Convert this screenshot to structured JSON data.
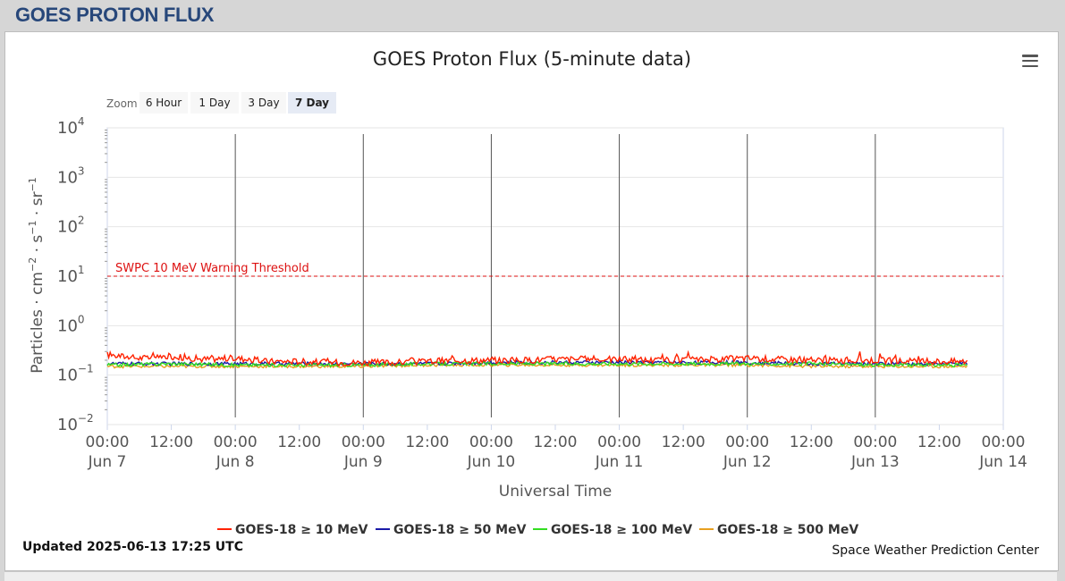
{
  "page": {
    "title": "GOES PROTON FLUX"
  },
  "menu": {
    "icon": "hamburger-menu-icon"
  },
  "zoom": {
    "label": "Zoom",
    "buttons": [
      "6 Hour",
      "1 Day",
      "3 Day",
      "7 Day"
    ],
    "selected": "7 Day"
  },
  "footer": {
    "updated": "Updated 2025-06-13 17:25 UTC",
    "credit": "Space Weather Prediction Center"
  },
  "chart_data": {
    "type": "line",
    "title": "GOES Proton Flux (5-minute data)",
    "xlabel": "Universal Time",
    "ylabel_parts": [
      "Particles · cm",
      "−2",
      " · s",
      "−1",
      " · sr",
      "−1"
    ],
    "y_scale": "log",
    "ylim": [
      0.01,
      10000
    ],
    "y_ticks": [
      {
        "value": 0.01,
        "base": "10",
        "exp": "−2"
      },
      {
        "value": 0.1,
        "base": "10",
        "exp": "−1"
      },
      {
        "value": 1,
        "base": "10",
        "exp": "0"
      },
      {
        "value": 10,
        "base": "10",
        "exp": "1"
      },
      {
        "value": 100,
        "base": "10",
        "exp": "2"
      },
      {
        "value": 1000,
        "base": "10",
        "exp": "3"
      },
      {
        "value": 10000,
        "base": "10",
        "exp": "4"
      }
    ],
    "xlim": [
      "2025-06-07 00:00",
      "2025-06-14 00:00"
    ],
    "x_ticks": [
      {
        "time": "2025-06-07 00:00",
        "line1": "00:00",
        "line2": "Jun 7"
      },
      {
        "time": "2025-06-07 12:00",
        "line1": "12:00",
        "line2": ""
      },
      {
        "time": "2025-06-08 00:00",
        "line1": "00:00",
        "line2": "Jun 8"
      },
      {
        "time": "2025-06-08 12:00",
        "line1": "12:00",
        "line2": ""
      },
      {
        "time": "2025-06-09 00:00",
        "line1": "00:00",
        "line2": "Jun 9"
      },
      {
        "time": "2025-06-09 12:00",
        "line1": "12:00",
        "line2": ""
      },
      {
        "time": "2025-06-10 00:00",
        "line1": "00:00",
        "line2": "Jun 10"
      },
      {
        "time": "2025-06-10 12:00",
        "line1": "12:00",
        "line2": ""
      },
      {
        "time": "2025-06-11 00:00",
        "line1": "00:00",
        "line2": "Jun 11"
      },
      {
        "time": "2025-06-11 12:00",
        "line1": "12:00",
        "line2": ""
      },
      {
        "time": "2025-06-12 00:00",
        "line1": "00:00",
        "line2": "Jun 12"
      },
      {
        "time": "2025-06-12 12:00",
        "line1": "12:00",
        "line2": ""
      },
      {
        "time": "2025-06-13 00:00",
        "line1": "00:00",
        "line2": "Jun 13"
      },
      {
        "time": "2025-06-13 12:00",
        "line1": "12:00",
        "line2": ""
      },
      {
        "time": "2025-06-14 00:00",
        "line1": "00:00",
        "line2": "Jun 14"
      }
    ],
    "day_lines": [
      "2025-06-08 00:00",
      "2025-06-09 00:00",
      "2025-06-10 00:00",
      "2025-06-11 00:00",
      "2025-06-12 00:00",
      "2025-06-13 00:00"
    ],
    "threshold": {
      "value": 10,
      "label": "SWPC 10 MeV Warning Threshold",
      "color": "#dd1111"
    },
    "grid": true,
    "legend_position": "bottom",
    "series": [
      {
        "name": "GOES-18 ≥ 10 MeV",
        "color": "#ff2200",
        "x": [
          "2025-06-07 00:00",
          "2025-06-07 06:00",
          "2025-06-07 12:00",
          "2025-06-07 18:00",
          "2025-06-08 00:00",
          "2025-06-08 06:00",
          "2025-06-08 12:00",
          "2025-06-08 18:00",
          "2025-06-09 00:00",
          "2025-06-09 06:00",
          "2025-06-09 12:00",
          "2025-06-09 18:00",
          "2025-06-10 00:00",
          "2025-06-10 06:00",
          "2025-06-10 12:00",
          "2025-06-10 18:00",
          "2025-06-11 00:00",
          "2025-06-11 06:00",
          "2025-06-11 12:00",
          "2025-06-11 18:00",
          "2025-06-12 00:00",
          "2025-06-12 06:00",
          "2025-06-12 12:00",
          "2025-06-12 18:00",
          "2025-06-13 00:00",
          "2025-06-13 06:00",
          "2025-06-13 12:00",
          "2025-06-13 17:25"
        ],
        "values": [
          0.26,
          0.22,
          0.24,
          0.21,
          0.22,
          0.19,
          0.19,
          0.18,
          0.18,
          0.18,
          0.19,
          0.2,
          0.2,
          0.2,
          0.21,
          0.21,
          0.21,
          0.2,
          0.2,
          0.21,
          0.22,
          0.21,
          0.2,
          0.2,
          0.2,
          0.19,
          0.19,
          0.19
        ]
      },
      {
        "name": "GOES-18 ≥ 50 MeV",
        "color": "#1a1aa8",
        "x": [
          "2025-06-07 00:00",
          "2025-06-07 12:00",
          "2025-06-08 00:00",
          "2025-06-08 12:00",
          "2025-06-09 00:00",
          "2025-06-09 12:00",
          "2025-06-10 00:00",
          "2025-06-10 12:00",
          "2025-06-11 00:00",
          "2025-06-11 12:00",
          "2025-06-12 00:00",
          "2025-06-12 12:00",
          "2025-06-13 00:00",
          "2025-06-13 17:25"
        ],
        "values": [
          0.17,
          0.17,
          0.17,
          0.17,
          0.17,
          0.17,
          0.18,
          0.18,
          0.18,
          0.18,
          0.18,
          0.17,
          0.17,
          0.17
        ]
      },
      {
        "name": "GOES-18 ≥ 100 MeV",
        "color": "#33dd22",
        "x": [
          "2025-06-07 00:00",
          "2025-06-07 12:00",
          "2025-06-08 00:00",
          "2025-06-08 12:00",
          "2025-06-09 00:00",
          "2025-06-09 12:00",
          "2025-06-10 00:00",
          "2025-06-10 12:00",
          "2025-06-11 00:00",
          "2025-06-11 12:00",
          "2025-06-12 00:00",
          "2025-06-12 12:00",
          "2025-06-13 00:00",
          "2025-06-13 17:25"
        ],
        "values": [
          0.16,
          0.17,
          0.16,
          0.16,
          0.16,
          0.17,
          0.17,
          0.17,
          0.17,
          0.17,
          0.17,
          0.17,
          0.16,
          0.16
        ]
      },
      {
        "name": "GOES-18 ≥ 500 MeV",
        "color": "#e8a020",
        "x": [
          "2025-06-07 00:00",
          "2025-06-07 12:00",
          "2025-06-08 00:00",
          "2025-06-08 12:00",
          "2025-06-09 00:00",
          "2025-06-09 12:00",
          "2025-06-10 00:00",
          "2025-06-10 12:00",
          "2025-06-11 00:00",
          "2025-06-11 12:00",
          "2025-06-12 00:00",
          "2025-06-12 12:00",
          "2025-06-13 00:00",
          "2025-06-13 17:25"
        ],
        "values": [
          0.15,
          0.15,
          0.15,
          0.15,
          0.15,
          0.16,
          0.16,
          0.16,
          0.16,
          0.16,
          0.16,
          0.15,
          0.15,
          0.15
        ]
      }
    ]
  }
}
